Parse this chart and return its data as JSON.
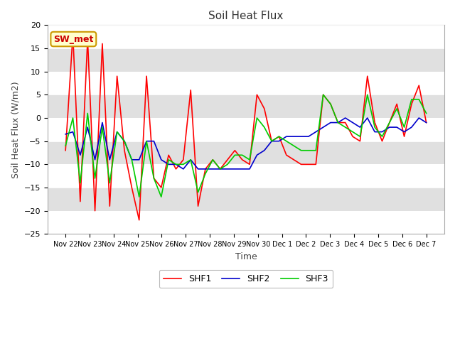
{
  "title": "Soil Heat Flux",
  "xlabel": "Time",
  "ylabel": "Soil Heat Flux (W/m2)",
  "ylim": [
    -25,
    20
  ],
  "yticks": [
    -25,
    -20,
    -15,
    -10,
    -5,
    0,
    5,
    10,
    15,
    20
  ],
  "band_colors": [
    "#ffffff",
    "#e0e0e0"
  ],
  "plot_bg": "#ffffff",
  "fig_bg": "#ffffff",
  "annotation_label": "SW_met",
  "annotation_bg": "#ffffcc",
  "annotation_border": "#cc9900",
  "annotation_text_color": "#cc0000",
  "line_colors": {
    "SHF1": "#ff0000",
    "SHF2": "#0000cc",
    "SHF3": "#00cc00"
  },
  "x_tick_labels": [
    "Nov 22",
    "Nov 23",
    "Nov 24",
    "Nov 25",
    "Nov 26",
    "Nov 27",
    "Nov 28",
    "Nov 29",
    "Nov 30",
    "Dec 1",
    "Dec 2",
    "Dec 3",
    "Dec 4",
    "Dec 5",
    "Dec 6",
    "Dec 7"
  ],
  "SHF1": [
    -7,
    18,
    -18,
    17,
    -20,
    16,
    -19,
    9,
    -7,
    -15,
    -22,
    9,
    -13,
    -15,
    -8,
    -11,
    -9,
    6,
    -19,
    -11,
    -9,
    -11,
    -9,
    -7,
    -9,
    -10,
    5,
    2,
    -5,
    -4,
    -8,
    -9,
    -10,
    -10,
    -10,
    5,
    3,
    -1,
    -1,
    -4,
    -5,
    9,
    -1,
    -5,
    -1,
    3,
    -4,
    3,
    7,
    -1
  ],
  "SHF2": [
    -3.5,
    -3,
    -8,
    -2,
    -9,
    -1,
    -9,
    -3,
    -5,
    -9,
    -9,
    -5,
    -5,
    -9,
    -10,
    -10,
    -11,
    -9,
    -11,
    -11,
    -11,
    -11,
    -11,
    -11,
    -11,
    -11,
    -8,
    -7,
    -5,
    -5,
    -4,
    -4,
    -4,
    -4,
    -3,
    -2,
    -1,
    -1,
    0,
    -1,
    -2,
    0,
    -3,
    -3,
    -2,
    -2,
    -3,
    -2,
    0,
    -1
  ],
  "SHF3": [
    -6,
    0,
    -14,
    1,
    -13,
    -2,
    -14,
    -3,
    -5,
    -9,
    -17,
    -5,
    -13,
    -17,
    -9,
    -10,
    -10,
    -9,
    -16,
    -12,
    -9,
    -11,
    -10,
    -8,
    -8,
    -9,
    0,
    -2,
    -5,
    -4,
    -5,
    -6,
    -7,
    -7,
    -7,
    5,
    3,
    -1,
    -2,
    -3,
    -4,
    5,
    -2,
    -4,
    -1,
    2,
    -2,
    4,
    4,
    1
  ]
}
